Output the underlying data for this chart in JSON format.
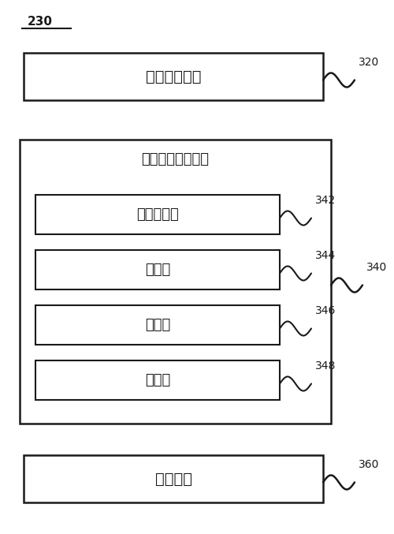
{
  "bg_color": "#ffffff",
  "label_230": "230",
  "label_320": "320",
  "label_340": "340",
  "label_342": "342",
  "label_344": "344",
  "label_346": "346",
  "label_348": "348",
  "label_360": "360",
  "box1_text": "图像重建单元",
  "outer_box_text": "神经网络训练单元",
  "inner_box1_text": "参数确定块",
  "inner_box2_text": "提取块",
  "inner_box3_text": "计算块",
  "inner_box4_text": "判断块",
  "box3_text": "存储单元",
  "font_size_main": 13,
  "font_size_label": 10,
  "box_edge_color": "#1a1a1a",
  "box_fill_color": "#ffffff",
  "text_color": "#1a1a1a",
  "fig_w": 5.0,
  "fig_h": 6.77,
  "dpi": 100
}
